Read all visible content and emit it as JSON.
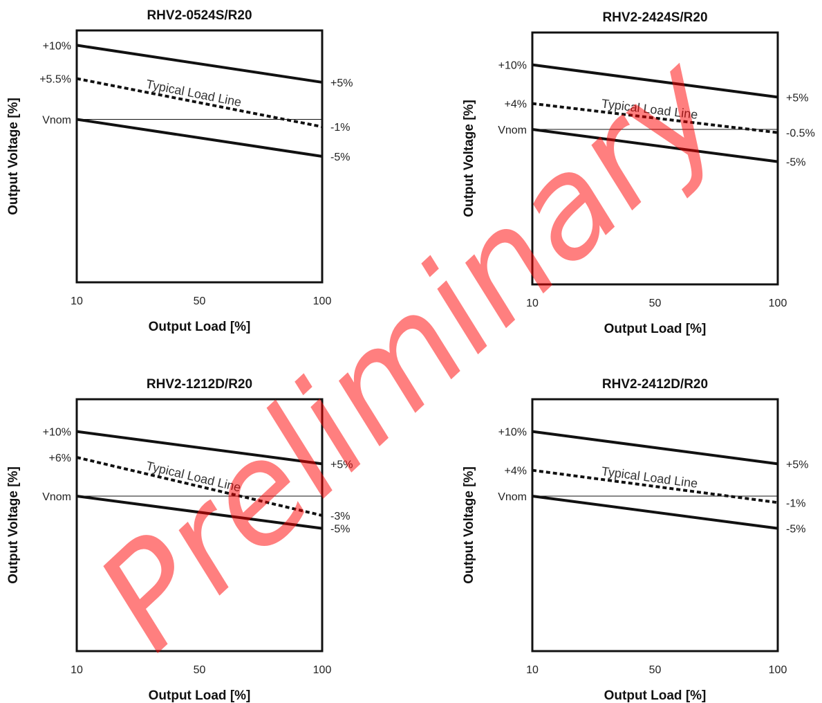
{
  "watermark": {
    "text": "Preliminary",
    "color": "#ff0000"
  },
  "chart_data": [
    {
      "type": "line",
      "title": "RHV2-0524S/R20",
      "xlabel": "Output Load [%]",
      "ylabel": "Output Voltage [%]",
      "x_ticks": [
        "10",
        "50",
        "100"
      ],
      "left_labels": [
        "+10%",
        "+5.5%",
        "Vnom"
      ],
      "right_labels": [
        "+5%",
        "-1%",
        "-5%"
      ],
      "annotation": "Typical Load Line",
      "ylim": [
        -22,
        12
      ],
      "series": [
        {
          "style": "solid",
          "x": [
            10,
            100
          ],
          "y": [
            10,
            5
          ]
        },
        {
          "style": "dashed",
          "x": [
            10,
            100
          ],
          "y": [
            5.5,
            -1
          ]
        },
        {
          "style": "solid",
          "x": [
            10,
            100
          ],
          "y": [
            0,
            -5
          ]
        }
      ],
      "reference": {
        "y": 0
      }
    },
    {
      "type": "line",
      "title": "RHV2-2424S/R20",
      "xlabel": "Output Load [%]",
      "ylabel": "Output Voltage [%]",
      "x_ticks": [
        "10",
        "50",
        "100"
      ],
      "left_labels": [
        "+10%",
        "+4%",
        "Vnom"
      ],
      "right_labels": [
        "+5%",
        "-0.5%",
        "-5%"
      ],
      "annotation": "Typical Load Line",
      "ylim": [
        -24,
        15
      ],
      "series": [
        {
          "style": "solid",
          "x": [
            10,
            100
          ],
          "y": [
            10,
            5
          ]
        },
        {
          "style": "dashed",
          "x": [
            10,
            100
          ],
          "y": [
            4,
            -0.5
          ]
        },
        {
          "style": "solid",
          "x": [
            10,
            100
          ],
          "y": [
            0,
            -5
          ]
        }
      ],
      "reference": {
        "y": 0
      }
    },
    {
      "type": "line",
      "title": "RHV2-1212D/R20",
      "xlabel": "Output Load [%]",
      "ylabel": "Output Voltage [%]",
      "x_ticks": [
        "10",
        "50",
        "100"
      ],
      "left_labels": [
        "+10%",
        "+6%",
        "Vnom"
      ],
      "right_labels": [
        "+5%",
        "-3%",
        "-5%"
      ],
      "annotation": "Typical Load Line",
      "ylim": [
        -24,
        15
      ],
      "series": [
        {
          "style": "solid",
          "x": [
            10,
            100
          ],
          "y": [
            10,
            5
          ]
        },
        {
          "style": "dashed",
          "x": [
            10,
            100
          ],
          "y": [
            6,
            -3
          ]
        },
        {
          "style": "solid",
          "x": [
            10,
            100
          ],
          "y": [
            0,
            -5
          ]
        }
      ],
      "reference": {
        "y": 0
      }
    },
    {
      "type": "line",
      "title": "RHV2-2412D/R20",
      "xlabel": "Output Load [%]",
      "ylabel": "Output Voltage [%]",
      "x_ticks": [
        "10",
        "50",
        "100"
      ],
      "left_labels": [
        "+10%",
        "+4%",
        "Vnom"
      ],
      "right_labels": [
        "+5%",
        "-1%",
        "-5%"
      ],
      "annotation": "Typical Load Line",
      "ylim": [
        -24,
        15
      ],
      "series": [
        {
          "style": "solid",
          "x": [
            10,
            100
          ],
          "y": [
            10,
            5
          ]
        },
        {
          "style": "dashed",
          "x": [
            10,
            100
          ],
          "y": [
            4,
            -1
          ]
        },
        {
          "style": "solid",
          "x": [
            10,
            100
          ],
          "y": [
            0,
            -5
          ]
        }
      ],
      "reference": {
        "y": 0
      }
    }
  ]
}
